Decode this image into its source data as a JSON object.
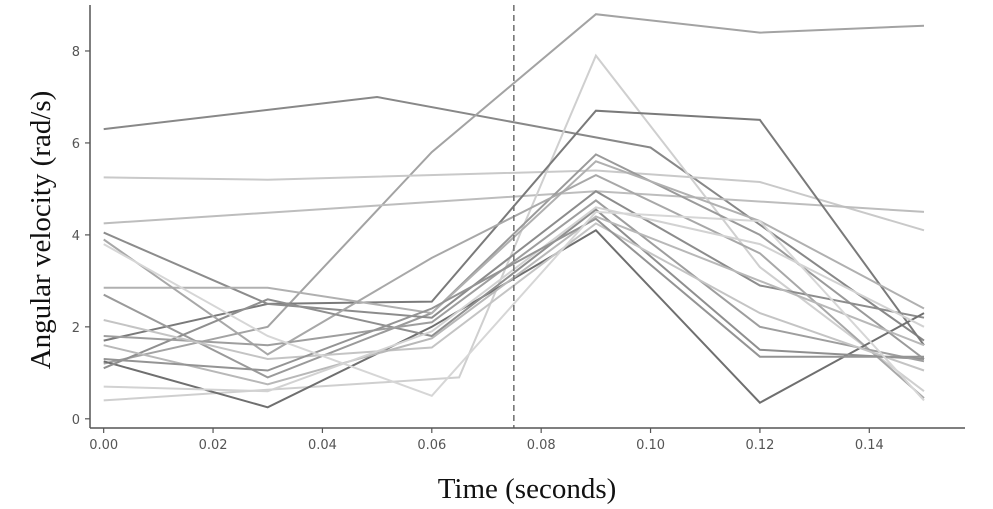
{
  "chart_data": {
    "type": "line",
    "title": "",
    "xlabel": "Time (seconds)",
    "ylabel": "Angular velocity  (rad/s)",
    "xlim": [
      -0.0025,
      0.1575
    ],
    "ylim": [
      -0.2,
      9.0
    ],
    "xticks": [
      "0.00",
      "0.02",
      "0.04",
      "0.06",
      "0.08",
      "0.10",
      "0.12",
      "0.14"
    ],
    "yticks": [
      "0",
      "2",
      "4",
      "6",
      "8"
    ],
    "grid": false,
    "legend": "none",
    "vertical_marker_x": 0.075,
    "series": [
      {
        "color": "#888888",
        "points": [
          [
            0,
            6.3
          ],
          [
            0.05,
            7.0
          ],
          [
            0.1,
            5.9
          ],
          [
            0.15,
            1.7
          ]
        ]
      },
      {
        "color": "#a3a3a3",
        "points": [
          [
            0,
            1.2
          ],
          [
            0.03,
            2.0
          ],
          [
            0.06,
            5.8
          ],
          [
            0.09,
            8.8
          ],
          [
            0.12,
            8.4
          ],
          [
            0.15,
            8.55
          ]
        ]
      },
      {
        "color": "#c9c9c9",
        "points": [
          [
            0,
            5.25
          ],
          [
            0.03,
            5.2
          ],
          [
            0.09,
            5.4
          ],
          [
            0.12,
            5.15
          ],
          [
            0.15,
            4.1
          ]
        ]
      },
      {
        "color": "#bdbdbd",
        "points": [
          [
            0,
            4.25
          ],
          [
            0.09,
            4.95
          ],
          [
            0.15,
            4.5
          ]
        ]
      },
      {
        "color": "#cfcfcf",
        "points": [
          [
            0,
            0.4
          ],
          [
            0.065,
            0.9
          ],
          [
            0.09,
            7.9
          ],
          [
            0.12,
            3.3
          ],
          [
            0.15,
            0.6
          ]
        ]
      },
      {
        "color": "#7a7a7a",
        "points": [
          [
            0,
            1.7
          ],
          [
            0.03,
            2.5
          ],
          [
            0.06,
            2.55
          ],
          [
            0.09,
            6.7
          ],
          [
            0.12,
            6.5
          ],
          [
            0.15,
            1.6
          ]
        ]
      },
      {
        "color": "#9a9a9a",
        "points": [
          [
            0,
            2.7
          ],
          [
            0.03,
            0.9
          ],
          [
            0.06,
            2.3
          ],
          [
            0.09,
            5.75
          ],
          [
            0.12,
            4.0
          ],
          [
            0.15,
            1.3
          ]
        ]
      },
      {
        "color": "#8c8c8c",
        "points": [
          [
            0,
            4.05
          ],
          [
            0.03,
            2.5
          ],
          [
            0.06,
            2.2
          ],
          [
            0.09,
            4.95
          ],
          [
            0.12,
            2.9
          ],
          [
            0.15,
            2.2
          ]
        ]
      },
      {
        "color": "#b0b0b0",
        "points": [
          [
            0,
            2.85
          ],
          [
            0.03,
            2.85
          ],
          [
            0.06,
            2.3
          ],
          [
            0.09,
            5.6
          ],
          [
            0.12,
            4.3
          ],
          [
            0.15,
            2.4
          ]
        ]
      },
      {
        "color": "#a8a8a8",
        "points": [
          [
            0,
            3.9
          ],
          [
            0.03,
            1.4
          ],
          [
            0.06,
            3.5
          ],
          [
            0.09,
            5.3
          ],
          [
            0.12,
            3.6
          ],
          [
            0.15,
            0.45
          ]
        ]
      },
      {
        "color": "#6f6f6f",
        "points": [
          [
            0,
            1.25
          ],
          [
            0.03,
            0.25
          ],
          [
            0.06,
            2.0
          ],
          [
            0.09,
            4.1
          ],
          [
            0.12,
            0.35
          ],
          [
            0.15,
            2.3
          ]
        ]
      },
      {
        "color": "#8f8f8f",
        "points": [
          [
            0,
            1.1
          ],
          [
            0.03,
            2.6
          ],
          [
            0.06,
            1.8
          ],
          [
            0.09,
            4.55
          ],
          [
            0.12,
            1.5
          ],
          [
            0.15,
            1.3
          ]
        ]
      },
      {
        "color": "#9e9e9e",
        "points": [
          [
            0,
            1.8
          ],
          [
            0.03,
            1.6
          ],
          [
            0.06,
            2.1
          ],
          [
            0.09,
            4.75
          ],
          [
            0.12,
            2.0
          ],
          [
            0.15,
            1.25
          ]
        ]
      },
      {
        "color": "#c4c4c4",
        "points": [
          [
            0,
            2.15
          ],
          [
            0.03,
            1.3
          ],
          [
            0.06,
            1.55
          ],
          [
            0.09,
            4.25
          ],
          [
            0.12,
            2.3
          ],
          [
            0.15,
            1.05
          ]
        ]
      },
      {
        "color": "#b8b8b8",
        "points": [
          [
            0,
            1.6
          ],
          [
            0.03,
            0.75
          ],
          [
            0.06,
            1.75
          ],
          [
            0.09,
            4.4
          ],
          [
            0.12,
            3.0
          ],
          [
            0.15,
            1.6
          ]
        ]
      },
      {
        "color": "#d2d2d2",
        "points": [
          [
            0,
            0.7
          ],
          [
            0.03,
            0.6
          ],
          [
            0.06,
            1.9
          ],
          [
            0.09,
            4.6
          ],
          [
            0.12,
            3.8
          ],
          [
            0.15,
            2.0
          ]
        ]
      },
      {
        "color": "#949494",
        "points": [
          [
            0,
            1.3
          ],
          [
            0.03,
            1.05
          ],
          [
            0.06,
            2.4
          ],
          [
            0.09,
            4.35
          ],
          [
            0.12,
            1.35
          ],
          [
            0.15,
            1.35
          ]
        ]
      },
      {
        "color": "#d6d6d6",
        "points": [
          [
            0,
            3.8
          ],
          [
            0.03,
            1.8
          ],
          [
            0.06,
            0.5
          ],
          [
            0.09,
            4.5
          ],
          [
            0.12,
            4.3
          ],
          [
            0.15,
            0.4
          ]
        ]
      }
    ]
  }
}
